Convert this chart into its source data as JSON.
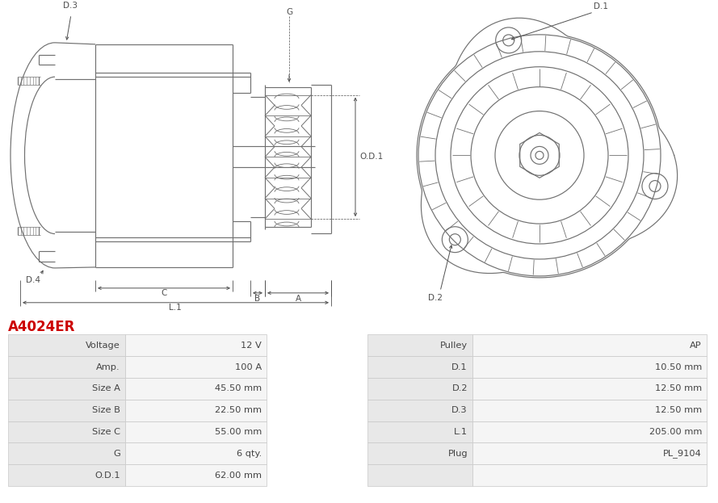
{
  "title": "A4024ER",
  "title_color": "#cc0000",
  "bg_color": "#ffffff",
  "table_data": {
    "left": [
      [
        "Voltage",
        "12 V"
      ],
      [
        "Amp.",
        "100 A"
      ],
      [
        "Size A",
        "45.50 mm"
      ],
      [
        "Size B",
        "22.50 mm"
      ],
      [
        "Size C",
        "55.00 mm"
      ],
      [
        "G",
        "6 qty."
      ],
      [
        "O.D.1",
        "62.00 mm"
      ]
    ],
    "right": [
      [
        "Pulley",
        "AP"
      ],
      [
        "D.1",
        "10.50 mm"
      ],
      [
        "D.2",
        "12.50 mm"
      ],
      [
        "D.3",
        "12.50 mm"
      ],
      [
        "L.1",
        "205.00 mm"
      ],
      [
        "Plug",
        "PL_9104"
      ],
      [
        "",
        ""
      ]
    ]
  },
  "table_colors": {
    "label_bg": "#e8e8e8",
    "value_bg": "#f5f5f5",
    "border": "#c8c8c8",
    "text": "#444444"
  }
}
